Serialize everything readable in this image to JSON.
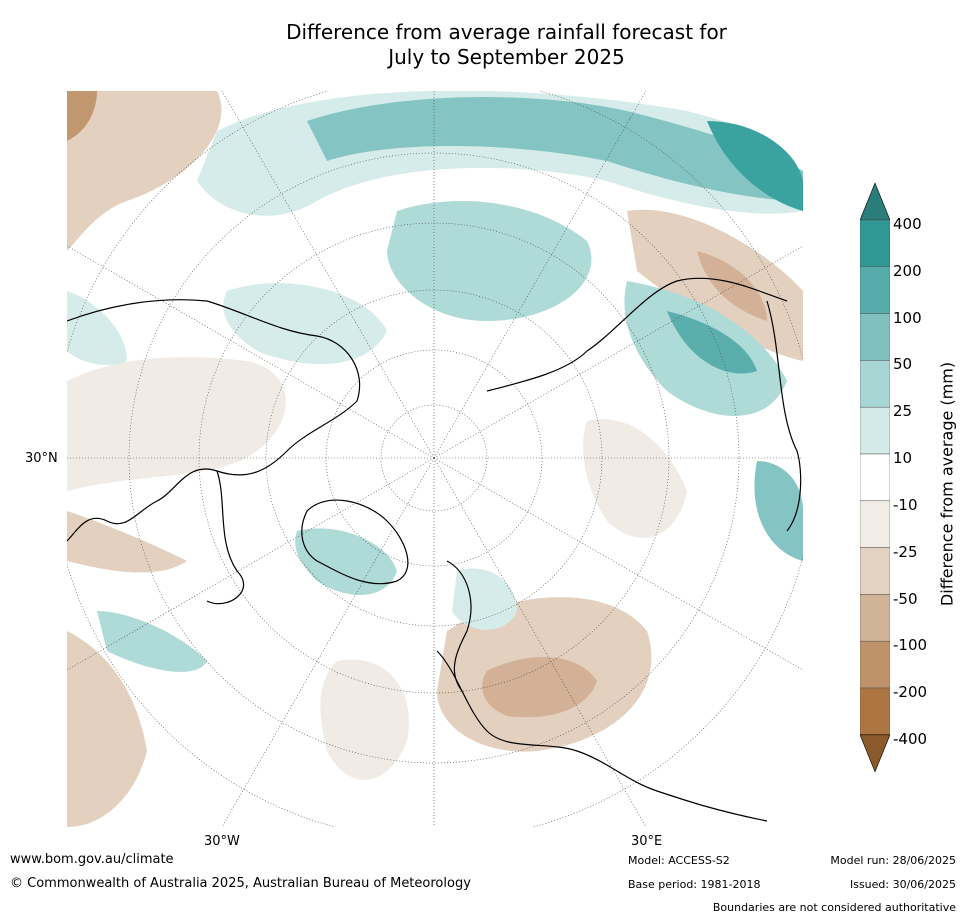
{
  "title": {
    "line1": "Difference from average rainfall forecast for",
    "line2": "July to September 2025"
  },
  "map": {
    "projection": "north-polar-stereographic",
    "lat_label": "30°N",
    "lon_labels": [
      "30°W",
      "30°E"
    ],
    "shading_colors": {
      "400": "#2f8d8b",
      "200": "#3aa3a0",
      "100": "#5aafad",
      "50": "#84c5c3",
      "25": "#aedad8",
      "10": "#d6ecea",
      "neutral": "#ffffff",
      "-10": "#f1ebe5",
      "-25": "#e3d0bf",
      "-50": "#d2b196",
      "-100": "#c19770",
      "-200": "#ad7540",
      "-400": "#8a5828"
    }
  },
  "colorbar": {
    "label": "Difference from average (mm)",
    "ticks": [
      "400",
      "200",
      "100",
      "50",
      "25",
      "10",
      "-10",
      "-25",
      "-50",
      "-100",
      "-200",
      "-400"
    ],
    "segments": [
      {
        "color": "#2a7d7b"
      },
      {
        "color": "#2f9794"
      },
      {
        "color": "#56acaa"
      },
      {
        "color": "#80c1bf"
      },
      {
        "color": "#a8d6d4"
      },
      {
        "color": "#d3eae8"
      },
      {
        "color": "#ffffff"
      },
      {
        "color": "#f2ece6"
      },
      {
        "color": "#e3d2c2"
      },
      {
        "color": "#d1b497"
      },
      {
        "color": "#bf936a"
      },
      {
        "color": "#ac7541"
      },
      {
        "color": "#8b5a2b"
      }
    ]
  },
  "footer": {
    "url": "www.bom.gov.au/climate",
    "copyright": "© Commonwealth of Australia 2025, Australian Bureau of Meteorology",
    "model": "Model: ACCESS-S2",
    "base_period": "Base period: 1981-2018",
    "model_run": "Model run: 28/06/2025",
    "issued": "Issued: 30/06/2025",
    "disclaimer": "Boundaries are not considered authoritative"
  }
}
